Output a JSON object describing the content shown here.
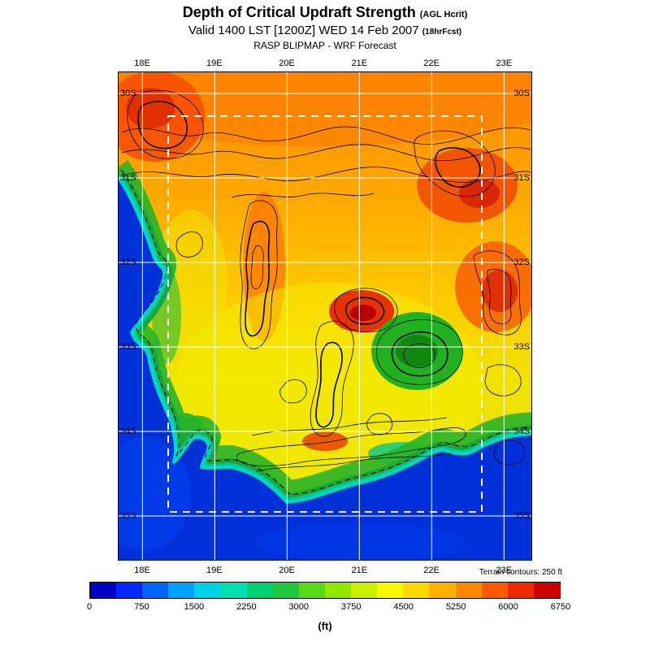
{
  "header": {
    "title": "Depth of Critical Updraft Strength",
    "title_suffix": "(AGL Hcrit)",
    "valid": "Valid 1400 LST [1200Z] WED 14 Feb 2007",
    "valid_suffix": "(18hrFcst)",
    "model": "RASP BLIPMAP - WRF Forecast"
  },
  "map": {
    "lon_labels": [
      "18E",
      "19E",
      "20E",
      "21E",
      "22E",
      "23E"
    ],
    "lat_labels": [
      "30S",
      "31S",
      "32S",
      "33S",
      "34S",
      "35S"
    ],
    "note": "Terrain contours: 250 ft"
  },
  "colorbar": {
    "labels": [
      "0",
      "750",
      "1500",
      "2250",
      "3000",
      "3750",
      "4500",
      "5250",
      "6000",
      "6750"
    ],
    "unit": "(ft)",
    "colors": [
      "#0000c8",
      "#0028ff",
      "#0064ff",
      "#00a0ff",
      "#00d0e8",
      "#00e0b0",
      "#00d070",
      "#20c840",
      "#58d818",
      "#90e800",
      "#c8f000",
      "#f8f800",
      "#ffd800",
      "#ffb000",
      "#ff8800",
      "#ff5800",
      "#f02800",
      "#d00000"
    ]
  }
}
